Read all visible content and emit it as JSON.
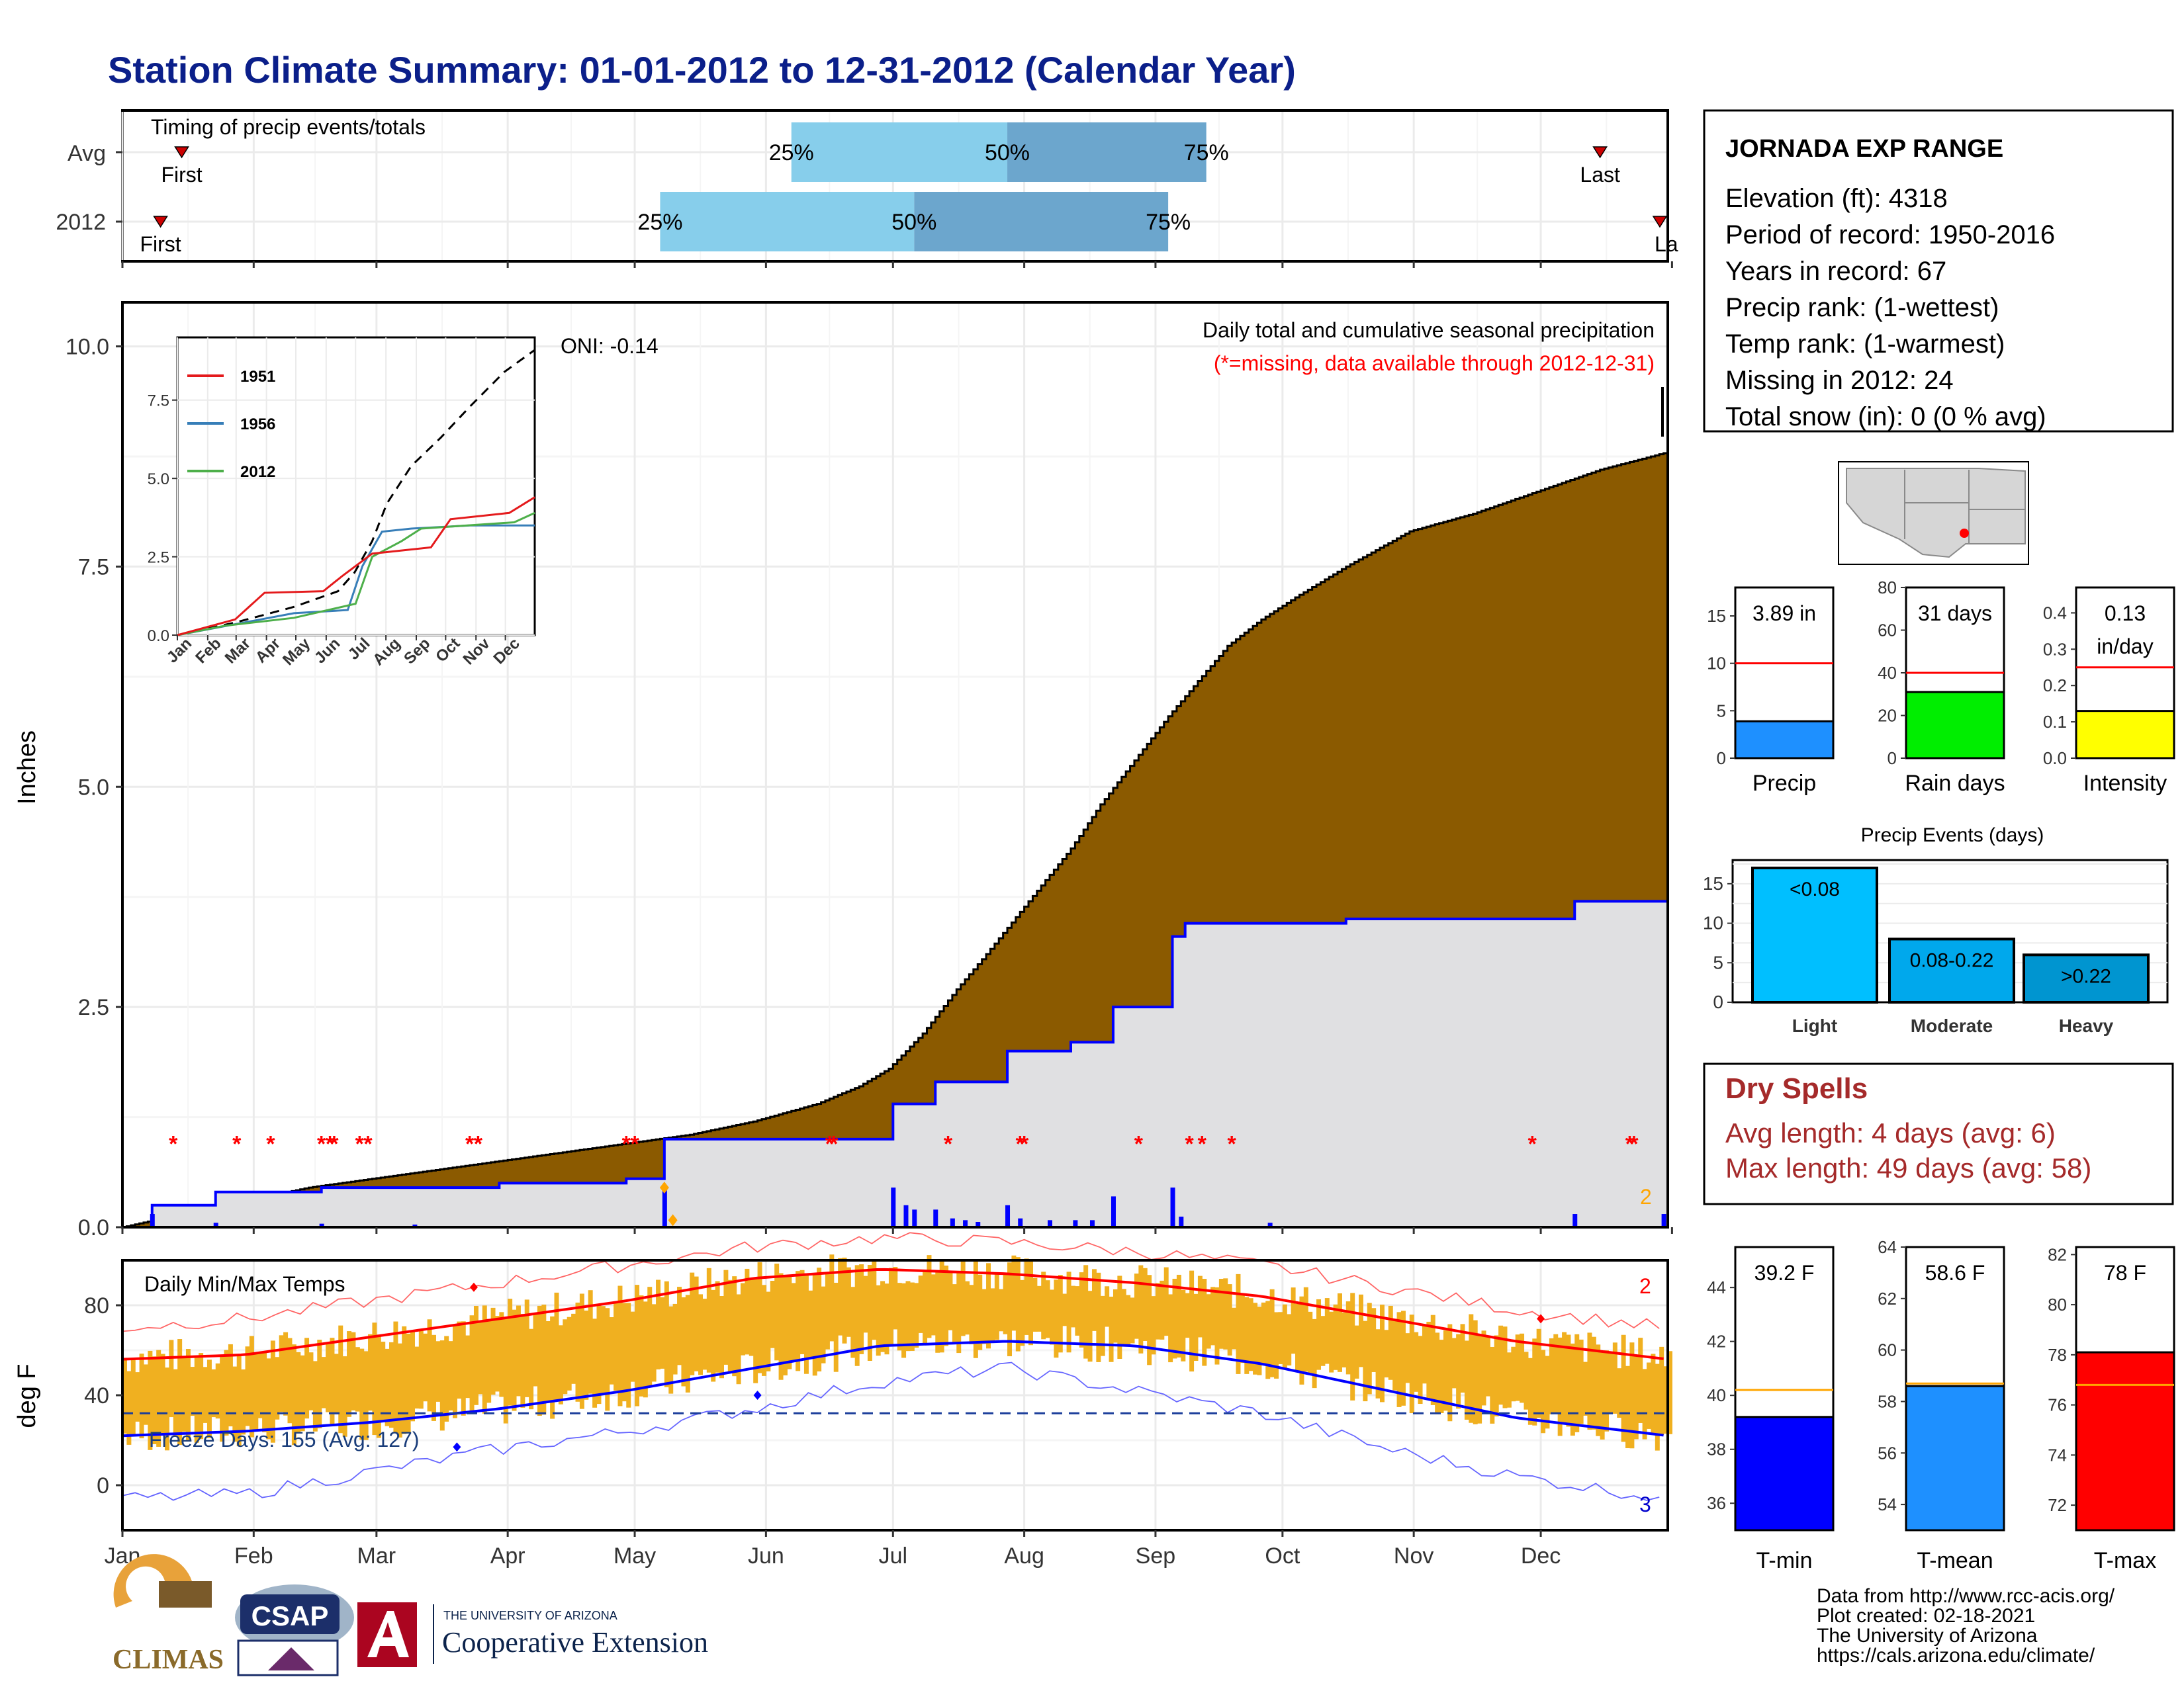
{
  "title": "Station Climate Summary: 01-01-2012 to 12-31-2012 (Calendar Year)",
  "timing": {
    "label": "Timing of precip events/totals",
    "rows": [
      {
        "name": "Avg",
        "first_label": "First",
        "last_label": "Last",
        "first_doy": 15,
        "last_doy": 350,
        "p25_doy": 159,
        "p50_doy": 210,
        "p75_doy": 257
      },
      {
        "name": "2012",
        "first_label": "First",
        "last_label": "La",
        "first_doy": 10,
        "last_doy": 366,
        "p25_doy": 128,
        "p50_doy": 188,
        "p75_doy": 248
      }
    ],
    "pct_labels": [
      "25%",
      "50%",
      "75%"
    ]
  },
  "chart_data": [
    {
      "type": "area",
      "title": "Daily total and cumulative seasonal precipitation",
      "subtitle": "(*=missing, data available through 2012-12-31)",
      "oni_label": "ONI: -0.14",
      "ylabel": "Inches",
      "ylim": [
        0,
        10.5
      ],
      "yticks": [
        "0.0",
        "2.5",
        "5.0",
        "7.5",
        "10.0"
      ],
      "xlabels": [
        "Jan",
        "Feb",
        "Mar",
        "Apr",
        "May",
        "Jun",
        "Jul",
        "Aug",
        "Sep",
        "Oct",
        "Nov",
        "Dec"
      ],
      "avg_cumulative": [
        [
          1,
          0
        ],
        [
          15,
          0.15
        ],
        [
          30,
          0.3
        ],
        [
          45,
          0.45
        ],
        [
          60,
          0.55
        ],
        [
          75,
          0.65
        ],
        [
          90,
          0.75
        ],
        [
          105,
          0.85
        ],
        [
          120,
          0.95
        ],
        [
          135,
          1.05
        ],
        [
          150,
          1.2
        ],
        [
          165,
          1.4
        ],
        [
          175,
          1.6
        ],
        [
          182,
          1.8
        ],
        [
          190,
          2.2
        ],
        [
          198,
          2.7
        ],
        [
          205,
          3.1
        ],
        [
          215,
          3.7
        ],
        [
          225,
          4.3
        ],
        [
          232,
          4.8
        ],
        [
          240,
          5.3
        ],
        [
          248,
          5.8
        ],
        [
          255,
          6.2
        ],
        [
          262,
          6.6
        ],
        [
          270,
          6.9
        ],
        [
          278,
          7.15
        ],
        [
          290,
          7.5
        ],
        [
          305,
          7.9
        ],
        [
          320,
          8.1
        ],
        [
          335,
          8.35
        ],
        [
          350,
          8.6
        ],
        [
          366,
          8.8
        ]
      ],
      "cumulative_2012": [
        [
          1,
          0
        ],
        [
          8,
          0.25
        ],
        [
          23,
          0.4
        ],
        [
          48,
          0.45
        ],
        [
          90,
          0.5
        ],
        [
          120,
          0.55
        ],
        [
          129,
          1.0
        ],
        [
          182,
          1.0
        ],
        [
          183,
          1.4
        ],
        [
          193,
          1.65
        ],
        [
          210,
          2.0
        ],
        [
          225,
          2.1
        ],
        [
          235,
          2.5
        ],
        [
          249,
          3.3
        ],
        [
          252,
          3.45
        ],
        [
          290,
          3.5
        ],
        [
          340,
          3.5
        ],
        [
          344,
          3.7
        ],
        [
          363,
          3.7
        ],
        [
          366,
          3.9
        ]
      ],
      "daily_2012": [
        [
          8,
          0.15
        ],
        [
          23,
          0.05
        ],
        [
          48,
          0.04
        ],
        [
          70,
          0.03
        ],
        [
          129,
          0.45
        ],
        [
          183,
          0.45
        ],
        [
          186,
          0.25
        ],
        [
          188,
          0.2
        ],
        [
          193,
          0.2
        ],
        [
          197,
          0.1
        ],
        [
          200,
          0.08
        ],
        [
          203,
          0.06
        ],
        [
          210,
          0.25
        ],
        [
          213,
          0.1
        ],
        [
          220,
          0.08
        ],
        [
          226,
          0.08
        ],
        [
          230,
          0.08
        ],
        [
          235,
          0.35
        ],
        [
          249,
          0.45
        ],
        [
          251,
          0.12
        ],
        [
          272,
          0.05
        ],
        [
          344,
          0.15
        ],
        [
          365,
          0.15
        ]
      ],
      "missing_doy": [
        13,
        28,
        36,
        48,
        50,
        51,
        57,
        59,
        83,
        85,
        120,
        122,
        168,
        169,
        196,
        213,
        214,
        241,
        253,
        256,
        263,
        334,
        357,
        358
      ],
      "missing_count_label": "2",
      "inset": {
        "legend": [
          "1951",
          "1956",
          "2012"
        ],
        "legend_colors": [
          "#e41a1c",
          "#377eb8",
          "#4daf4a"
        ],
        "yticks": [
          "0.0",
          "2.5",
          "5.0",
          "7.5"
        ],
        "xlabels": [
          "Jan",
          "Feb",
          "Mar",
          "Apr",
          "May",
          "Jun",
          "Jul",
          "Aug",
          "Sep",
          "Oct",
          "Nov",
          "Dec"
        ],
        "ylim": [
          0,
          9.5
        ],
        "avg": [
          [
            1,
            0
          ],
          [
            60,
            0.4
          ],
          [
            120,
            0.9
          ],
          [
            165,
            1.4
          ],
          [
            182,
            2.0
          ],
          [
            200,
            3.0
          ],
          [
            215,
            4.2
          ],
          [
            240,
            5.4
          ],
          [
            270,
            6.3
          ],
          [
            300,
            7.3
          ],
          [
            335,
            8.4
          ],
          [
            366,
            9.1
          ]
        ],
        "s1951": [
          [
            1,
            0
          ],
          [
            60,
            0.5
          ],
          [
            90,
            1.35
          ],
          [
            150,
            1.4
          ],
          [
            170,
            1.9
          ],
          [
            200,
            2.6
          ],
          [
            260,
            2.8
          ],
          [
            280,
            3.7
          ],
          [
            340,
            3.9
          ],
          [
            366,
            4.4
          ]
        ],
        "s1956": [
          [
            1,
            0
          ],
          [
            120,
            0.7
          ],
          [
            175,
            0.8
          ],
          [
            190,
            2.2
          ],
          [
            210,
            3.3
          ],
          [
            240,
            3.4
          ],
          [
            300,
            3.5
          ],
          [
            366,
            3.5
          ]
        ],
        "s2012": [
          [
            1,
            0
          ],
          [
            50,
            0.3
          ],
          [
            120,
            0.55
          ],
          [
            183,
            1.0
          ],
          [
            200,
            2.5
          ],
          [
            230,
            3.0
          ],
          [
            250,
            3.4
          ],
          [
            345,
            3.6
          ],
          [
            366,
            3.9
          ]
        ]
      }
    },
    {
      "type": "bar",
      "title": "Daily Min/Max Temps",
      "ylabel": "deg F",
      "ylim": [
        -20,
        100
      ],
      "yticks": [
        "0",
        "40",
        "80"
      ],
      "xlabels": [
        "Jan",
        "Feb",
        "Mar",
        "Apr",
        "May",
        "Jun",
        "Jul",
        "Aug",
        "Sep",
        "Oct",
        "Nov",
        "Dec"
      ],
      "freeze_label": "Freeze Days: 155 (Avg: 127)",
      "freeze_line": 32,
      "max_missing_label": "2",
      "min_missing_label": "3",
      "avg_max": [
        [
          1,
          56
        ],
        [
          30,
          58
        ],
        [
          60,
          66
        ],
        [
          90,
          74
        ],
        [
          120,
          82
        ],
        [
          150,
          92
        ],
        [
          180,
          96
        ],
        [
          210,
          94
        ],
        [
          240,
          90
        ],
        [
          270,
          84
        ],
        [
          300,
          74
        ],
        [
          330,
          64
        ],
        [
          366,
          56
        ]
      ],
      "avg_min": [
        [
          1,
          22
        ],
        [
          30,
          24
        ],
        [
          60,
          28
        ],
        [
          90,
          34
        ],
        [
          120,
          42
        ],
        [
          150,
          52
        ],
        [
          180,
          62
        ],
        [
          210,
          64
        ],
        [
          240,
          62
        ],
        [
          270,
          54
        ],
        [
          300,
          42
        ],
        [
          330,
          30
        ],
        [
          366,
          22
        ]
      ],
      "rec_max": [
        [
          1,
          70
        ],
        [
          30,
          74
        ],
        [
          60,
          82
        ],
        [
          90,
          90
        ],
        [
          120,
          98
        ],
        [
          150,
          106
        ],
        [
          180,
          110
        ],
        [
          210,
          108
        ],
        [
          240,
          104
        ],
        [
          270,
          98
        ],
        [
          300,
          88
        ],
        [
          330,
          78
        ],
        [
          366,
          70
        ]
      ],
      "rec_min": [
        [
          1,
          -6
        ],
        [
          30,
          -4
        ],
        [
          60,
          6
        ],
        [
          90,
          16
        ],
        [
          120,
          24
        ],
        [
          150,
          34
        ],
        [
          180,
          46
        ],
        [
          210,
          52
        ],
        [
          240,
          42
        ],
        [
          270,
          32
        ],
        [
          300,
          16
        ],
        [
          330,
          4
        ],
        [
          366,
          -6
        ]
      ]
    },
    {
      "type": "bar",
      "title": "",
      "panels": [
        {
          "label": "Precip",
          "value_label": "3.89 in",
          "value": 3.89,
          "normal": 10,
          "ylim": [
            0,
            18
          ],
          "yticks": [
            "0",
            "5",
            "10",
            "15"
          ],
          "color": "#1e90ff"
        },
        {
          "label": "Rain days",
          "value_label": "31 days",
          "value": 31,
          "normal": 40,
          "ylim": [
            0,
            80
          ],
          "yticks": [
            "0",
            "20",
            "40",
            "60",
            "80"
          ],
          "color": "#00ee00"
        },
        {
          "label": "Intensity",
          "value_label": "0.13",
          "value_label2": "in/day",
          "value": 0.13,
          "normal": 0.25,
          "ylim": [
            0,
            0.47
          ],
          "yticks": [
            "0.0",
            "0.1",
            "0.2",
            "0.3",
            "0.4"
          ],
          "color": "#ffff00"
        }
      ]
    },
    {
      "type": "bar",
      "title": "Precip Events (days)",
      "categories": [
        "Light",
        "Moderate",
        "Heavy"
      ],
      "bar_labels": [
        "<0.08",
        "0.08-0.22",
        ">0.22"
      ],
      "values": [
        17,
        8,
        6
      ],
      "ylim": [
        0,
        18
      ],
      "yticks": [
        "0",
        "5",
        "10",
        "15"
      ],
      "colors": [
        "#00bfff",
        "#00a8ec",
        "#0095d0"
      ]
    },
    {
      "type": "bar",
      "title": "",
      "panels": [
        {
          "label": "T-min",
          "value_label": "39.2 F",
          "value": 39.2,
          "normal": 40.2,
          "ylim": [
            35,
            45.5
          ],
          "yticks": [
            "36",
            "38",
            "40",
            "42",
            "44"
          ],
          "color": "#0000ff"
        },
        {
          "label": "T-mean",
          "value_label": "58.6 F",
          "value": 58.6,
          "normal": 58.7,
          "ylim": [
            53,
            64
          ],
          "yticks": [
            "54",
            "56",
            "58",
            "60",
            "62",
            "64"
          ],
          "color": "#1e90ff"
        },
        {
          "label": "T-max",
          "value_label": "78 F",
          "value": 78.1,
          "normal": 76.8,
          "ylim": [
            71,
            82.3
          ],
          "yticks": [
            "72",
            "74",
            "76",
            "78",
            "80",
            "82"
          ],
          "color": "#ff0000"
        }
      ]
    }
  ],
  "station": {
    "name": "JORNADA EXP RANGE",
    "lines": [
      "Elevation (ft): 4318",
      "Period of record: 1950-2016",
      "Years in record: 67",
      "Precip rank:  (1-wettest)",
      "Temp rank:  (1-warmest)",
      "Missing in 2012: 24",
      "Total snow (in): 0 (0 % avg)"
    ]
  },
  "dry_spells": {
    "title": "Dry Spells",
    "avg_line": "Avg length: 4 days (avg: 6)",
    "max_line": "Max length: 49 days (avg: 58)"
  },
  "footer": {
    "lines": [
      "Data from http://www.rcc-acis.org/",
      "Plot created: 02-18-2021",
      "The University of Arizona",
      "https://cals.arizona.edu/climate/"
    ],
    "climas": "CLIMAS",
    "csap": "CSAP",
    "ua_small": "THE UNIVERSITY OF ARIZONA",
    "ua_big": "Cooperative Extension"
  },
  "colors": {
    "title": "#0b1f8a",
    "cum_avg": "#8b5a00",
    "cum_2012_fill": "#e0e0e2",
    "cum_2012_line": "#0000ff",
    "temp_bar": "#f0b020",
    "max_line": "#ff0000",
    "min_line": "#0000ff",
    "missing": "#ff0000",
    "timing_light": "#87ceeb",
    "timing_dark": "#6ca6cd"
  }
}
